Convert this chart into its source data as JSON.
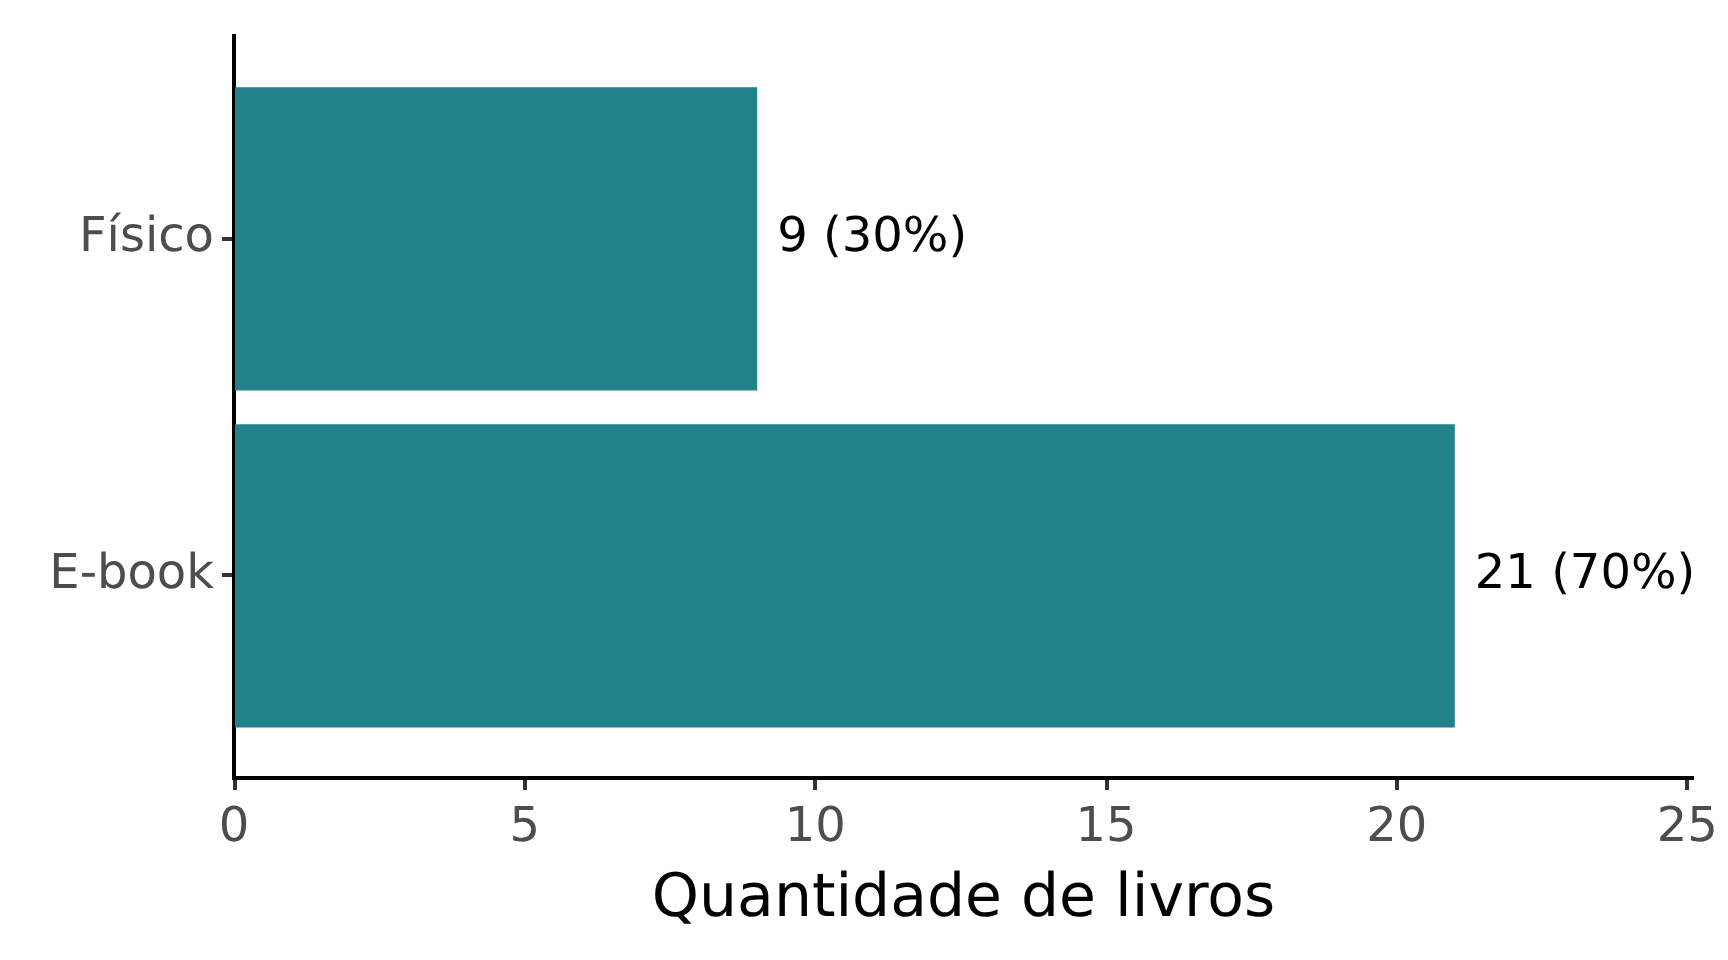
{
  "chart_data": {
    "type": "bar",
    "orientation": "horizontal",
    "categories": [
      "Físico",
      "E-book"
    ],
    "values": [
      9,
      21
    ],
    "color": "#22828c",
    "value_labels": [
      "9 (30%)",
      "21 (70%)"
    ],
    "xlabel": "Quantidade de livros",
    "xlim": [
      0,
      25.1
    ],
    "xticks": [
      0,
      5,
      10,
      15,
      20,
      25
    ],
    "grid": false,
    "legend": false
  }
}
